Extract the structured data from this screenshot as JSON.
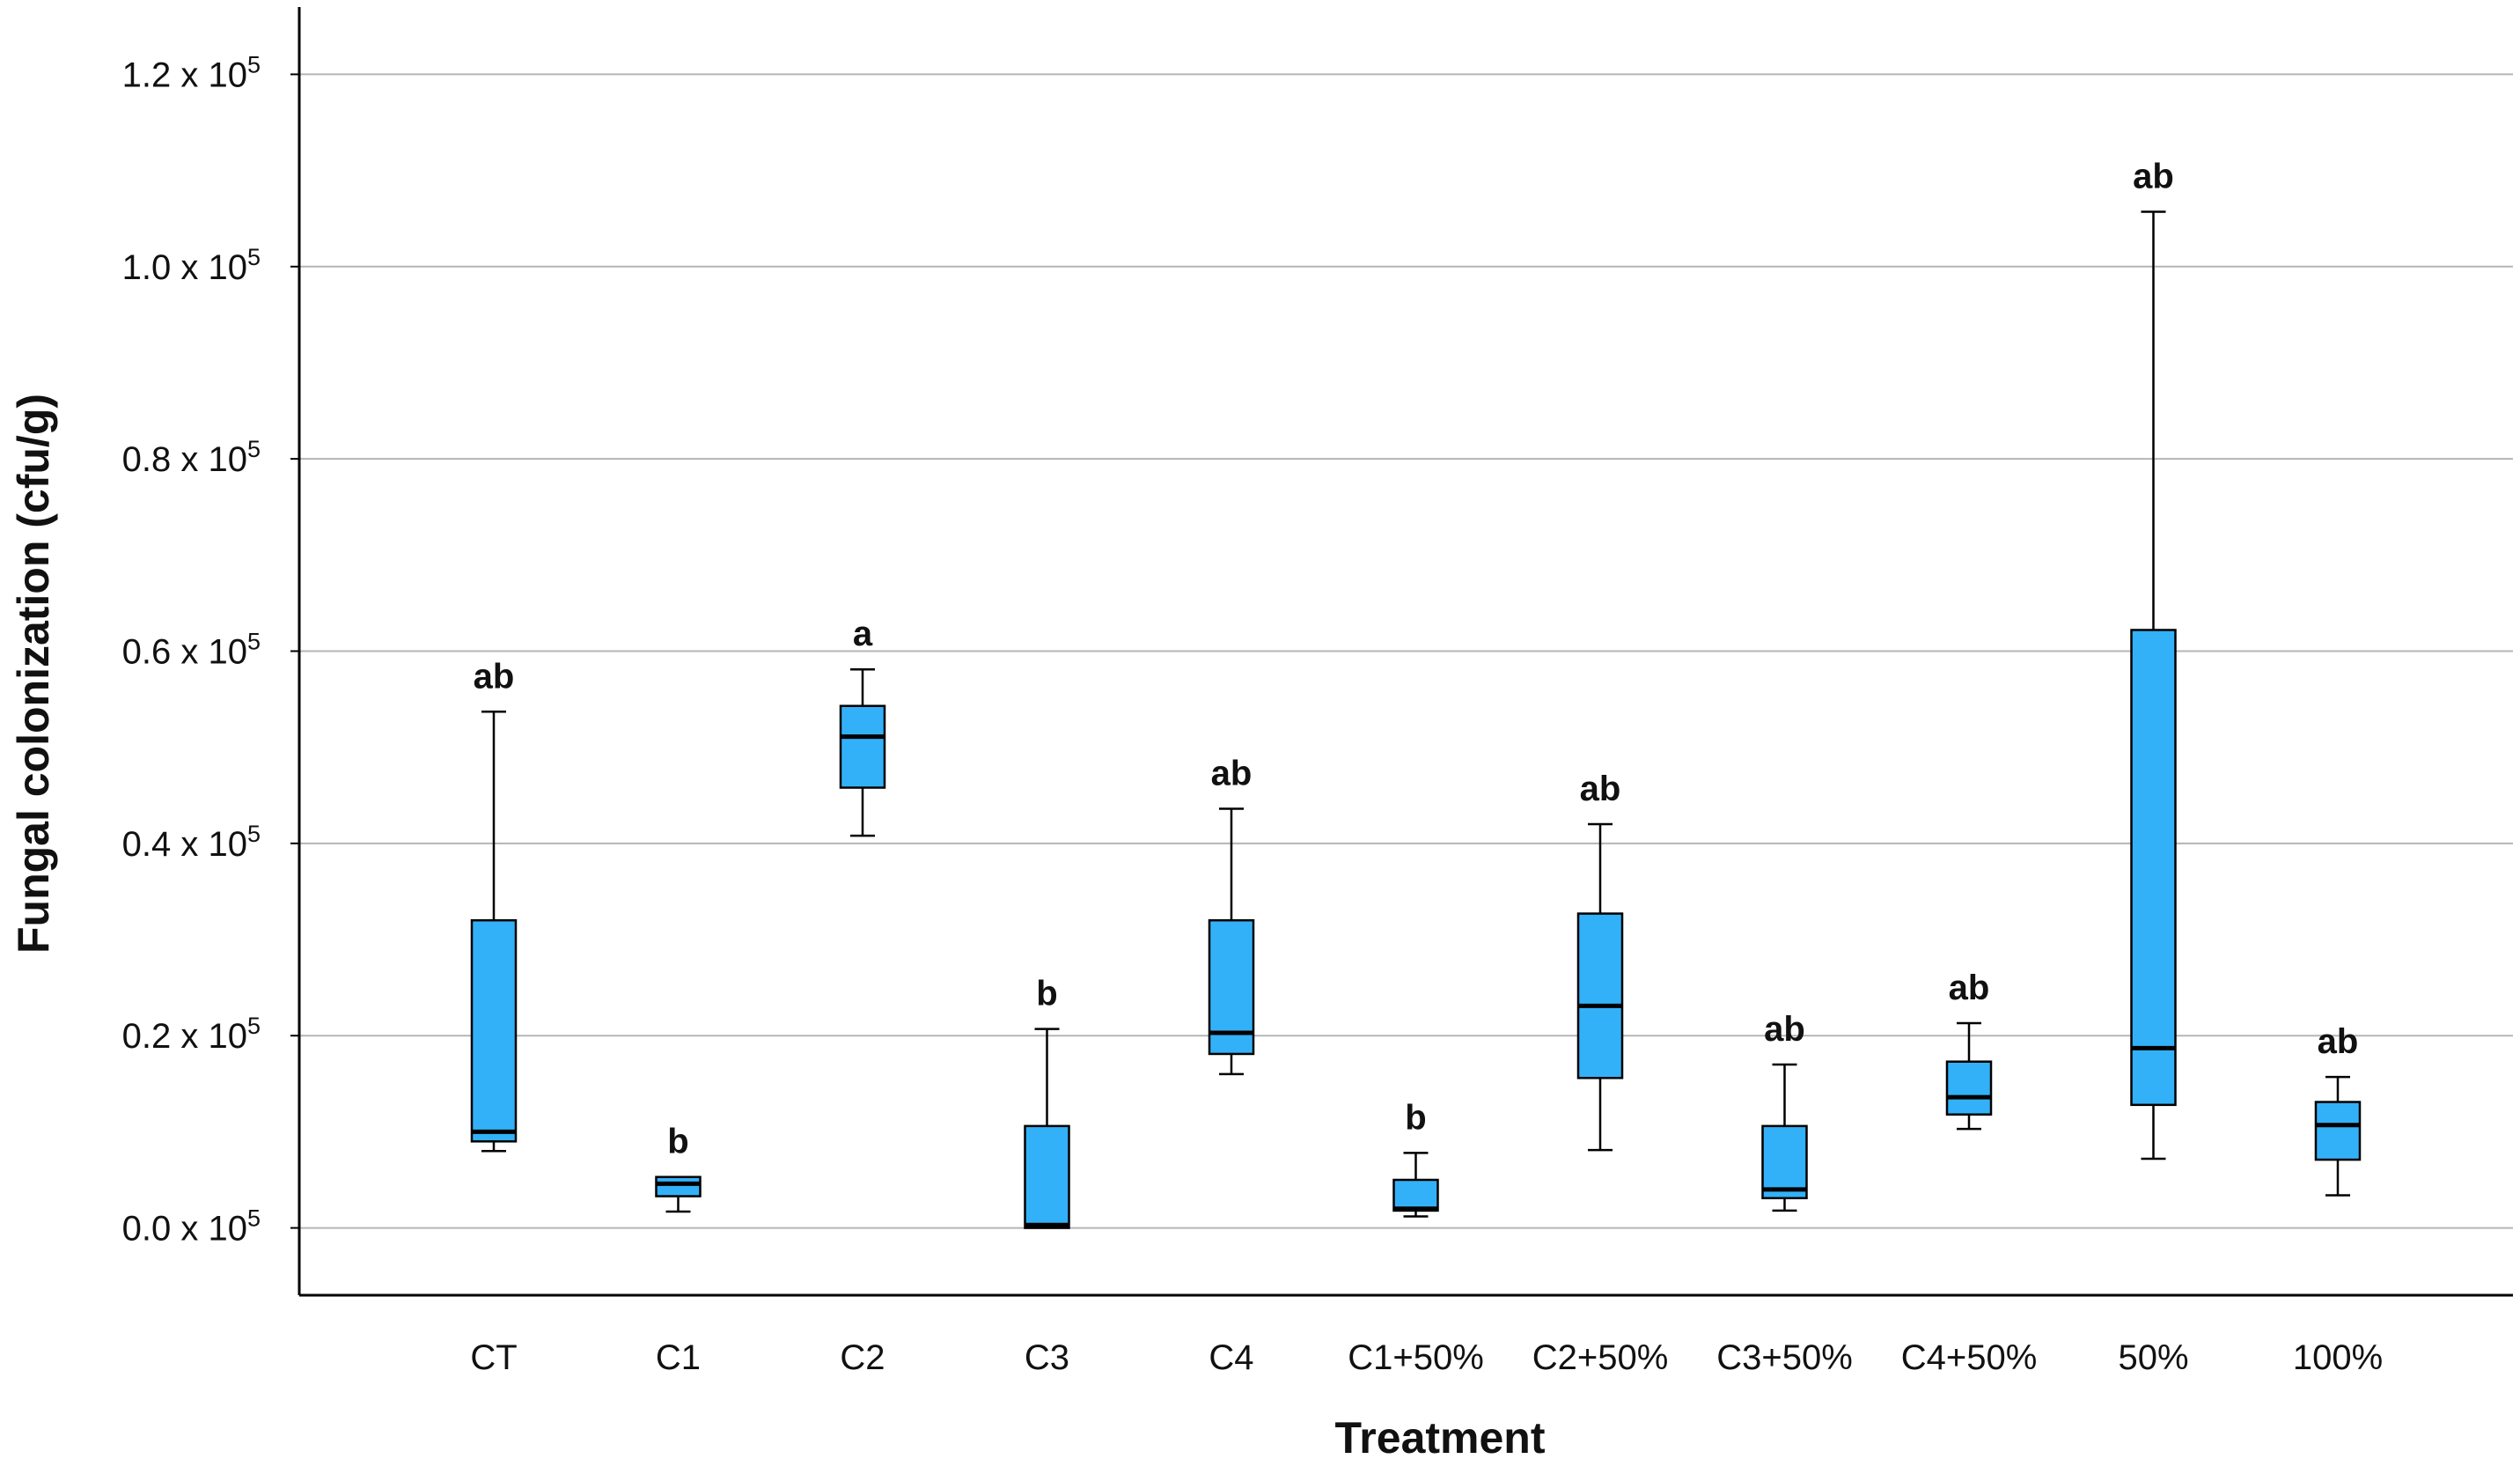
{
  "chart_data": {
    "type": "boxplot",
    "title": "",
    "xlabel": "Treatment",
    "ylabel": "Fungal colonization (cfu/g)",
    "ylim": [
      -0.07,
      1.27
    ],
    "y_unit_multiplier": "x 10^5",
    "y_ticks": [
      {
        "value": 0.0,
        "label": "0.0 x 10",
        "exp": "5"
      },
      {
        "value": 0.2,
        "label": "0.2 x 10",
        "exp": "5"
      },
      {
        "value": 0.4,
        "label": "0.4 x 10",
        "exp": "5"
      },
      {
        "value": 0.6,
        "label": "0.6 x 10",
        "exp": "5"
      },
      {
        "value": 0.8,
        "label": "0.8 x 10",
        "exp": "5"
      },
      {
        "value": 1.0,
        "label": "1.0 x 10",
        "exp": "5"
      },
      {
        "value": 1.2,
        "label": "1.2 x 10",
        "exp": "5"
      }
    ],
    "grid": true,
    "box_color": "#33b1f8",
    "categories": [
      "CT",
      "C1",
      "C2",
      "C3",
      "C4",
      "C1+50%",
      "C2+50%",
      "C3+50%",
      "C4+50%",
      "50%",
      "100%"
    ],
    "boxes": [
      {
        "category": "CT",
        "min": 0.08,
        "q1": 0.09,
        "median": 0.1,
        "q3": 0.32,
        "max": 0.537,
        "letter": "ab"
      },
      {
        "category": "C1",
        "min": 0.017,
        "q1": 0.033,
        "median": 0.046,
        "q3": 0.053,
        "max": 0.053,
        "letter": "b"
      },
      {
        "category": "C2",
        "min": 0.408,
        "q1": 0.458,
        "median": 0.511,
        "q3": 0.543,
        "max": 0.581,
        "letter": "a"
      },
      {
        "category": "C3",
        "min": 0.0,
        "q1": 0.0,
        "median": 0.003,
        "q3": 0.106,
        "max": 0.207,
        "letter": "b"
      },
      {
        "category": "C4",
        "min": 0.16,
        "q1": 0.181,
        "median": 0.203,
        "q3": 0.32,
        "max": 0.436,
        "letter": "ab"
      },
      {
        "category": "C1+50%",
        "min": 0.012,
        "q1": 0.018,
        "median": 0.02,
        "q3": 0.05,
        "max": 0.078,
        "letter": "b"
      },
      {
        "category": "C2+50%",
        "min": 0.081,
        "q1": 0.156,
        "median": 0.231,
        "q3": 0.327,
        "max": 0.42,
        "letter": "ab"
      },
      {
        "category": "C3+50%",
        "min": 0.018,
        "q1": 0.031,
        "median": 0.04,
        "q3": 0.106,
        "max": 0.17,
        "letter": "ab"
      },
      {
        "category": "C4+50%",
        "min": 0.103,
        "q1": 0.118,
        "median": 0.136,
        "q3": 0.173,
        "max": 0.213,
        "letter": "ab"
      },
      {
        "category": "50%",
        "min": 0.072,
        "q1": 0.128,
        "median": 0.187,
        "q3": 0.622,
        "max": 1.057,
        "letter": "ab"
      },
      {
        "category": "100%",
        "min": 0.034,
        "q1": 0.071,
        "median": 0.107,
        "q3": 0.131,
        "max": 0.157,
        "letter": "ab"
      }
    ]
  }
}
